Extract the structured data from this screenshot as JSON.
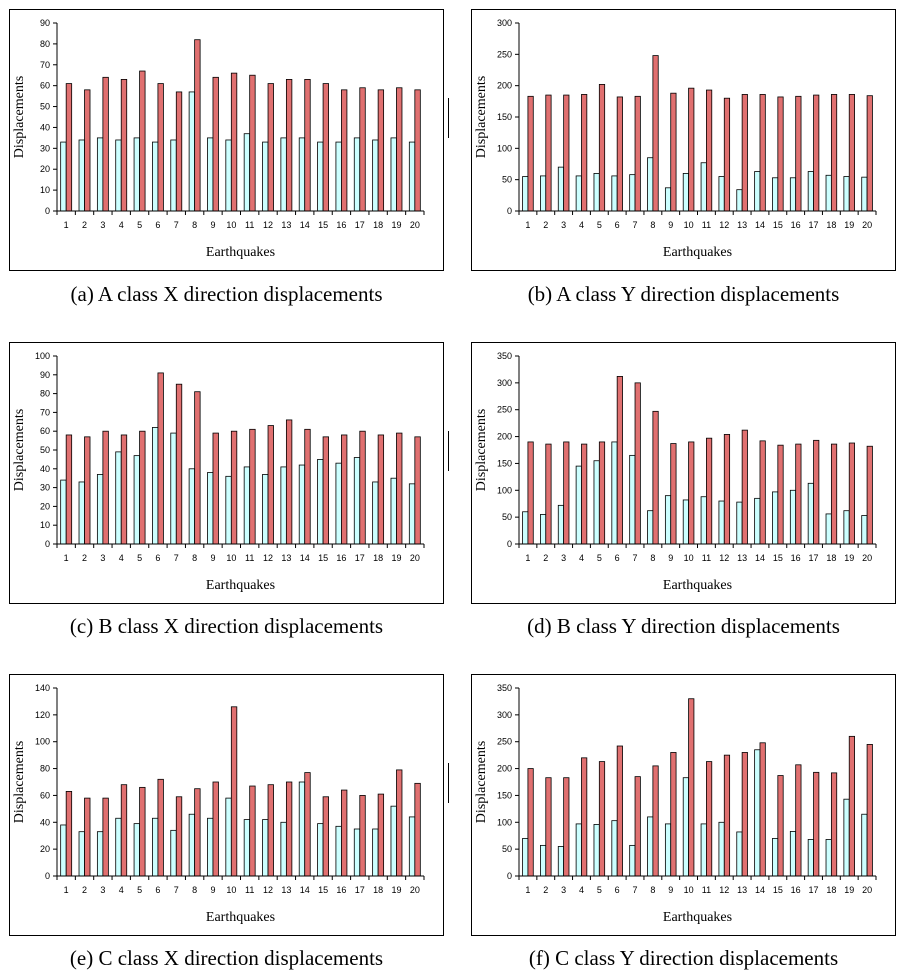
{
  "figure": {
    "captions": [
      "(a) A class X direction displacements",
      "(b) A class Y direction displacements",
      "(c) B class X direction displacements",
      "(d) B class Y direction displacements",
      "(e) C class X direction displacements",
      "(f) C class Y direction displacements"
    ]
  },
  "colors": {
    "series1_fill": "#CCFFFF",
    "series2_fill": "#E07070",
    "stroke": "#000000"
  },
  "chart_data": [
    {
      "type": "bar",
      "caption": "(a) A class X direction displacements",
      "xlabel": "Earthquakes",
      "ylabel": "Displacements",
      "categories": [
        "1",
        "2",
        "3",
        "4",
        "5",
        "6",
        "7",
        "8",
        "9",
        "10",
        "11",
        "12",
        "13",
        "14",
        "15",
        "16",
        "17",
        "18",
        "19",
        "20"
      ],
      "ylim": [
        0,
        90
      ],
      "yticks": [
        0,
        10,
        20,
        30,
        40,
        50,
        60,
        70,
        80,
        90
      ],
      "series": [
        {
          "values": [
            33,
            34,
            35,
            34,
            35,
            33,
            34,
            57,
            35,
            34,
            37,
            33,
            35,
            35,
            33,
            33,
            35,
            34,
            35,
            33
          ]
        },
        {
          "values": [
            61,
            58,
            64,
            63,
            67,
            61,
            57,
            82,
            64,
            66,
            65,
            61,
            63,
            63,
            61,
            58,
            59,
            58,
            59,
            58
          ]
        }
      ]
    },
    {
      "type": "bar",
      "caption": "(b) A class Y direction displacements",
      "xlabel": "Earthquakes",
      "ylabel": "Displacements",
      "categories": [
        "1",
        "2",
        "3",
        "4",
        "5",
        "6",
        "7",
        "8",
        "9",
        "10",
        "11",
        "12",
        "13",
        "14",
        "15",
        "16",
        "17",
        "18",
        "19",
        "20"
      ],
      "ylim": [
        0,
        300
      ],
      "yticks": [
        0,
        50,
        100,
        150,
        200,
        250,
        300
      ],
      "series": [
        {
          "values": [
            55,
            56,
            70,
            56,
            60,
            56,
            58,
            85,
            37,
            60,
            77,
            55,
            34,
            63,
            53,
            53,
            63,
            57,
            55,
            54
          ]
        },
        {
          "values": [
            183,
            185,
            185,
            186,
            202,
            182,
            183,
            248,
            188,
            196,
            193,
            180,
            186,
            186,
            182,
            183,
            185,
            186,
            186,
            184
          ]
        }
      ]
    },
    {
      "type": "bar",
      "caption": "(c) B class X direction displacements",
      "xlabel": "Earthquakes",
      "ylabel": "Displacements",
      "categories": [
        "1",
        "2",
        "3",
        "4",
        "5",
        "6",
        "7",
        "8",
        "9",
        "10",
        "11",
        "12",
        "13",
        "14",
        "15",
        "16",
        "17",
        "18",
        "19",
        "20"
      ],
      "ylim": [
        0,
        100
      ],
      "yticks": [
        0,
        10,
        20,
        30,
        40,
        50,
        60,
        70,
        80,
        90,
        100
      ],
      "series": [
        {
          "values": [
            34,
            33,
            37,
            49,
            47,
            62,
            59,
            40,
            38,
            36,
            41,
            37,
            41,
            42,
            45,
            43,
            46,
            33,
            35,
            32
          ]
        },
        {
          "values": [
            58,
            57,
            60,
            58,
            60,
            91,
            85,
            81,
            59,
            60,
            61,
            63,
            66,
            61,
            57,
            58,
            60,
            58,
            59,
            57
          ]
        }
      ]
    },
    {
      "type": "bar",
      "caption": "(d) B class Y direction displacements",
      "xlabel": "Earthquakes",
      "ylabel": "Displacements",
      "categories": [
        "1",
        "2",
        "3",
        "4",
        "5",
        "6",
        "7",
        "8",
        "9",
        "10",
        "11",
        "12",
        "13",
        "14",
        "15",
        "16",
        "17",
        "18",
        "19",
        "20"
      ],
      "ylim": [
        0,
        350
      ],
      "yticks": [
        0,
        50,
        100,
        150,
        200,
        250,
        300,
        350
      ],
      "series": [
        {
          "values": [
            60,
            55,
            72,
            145,
            155,
            190,
            165,
            62,
            90,
            82,
            88,
            80,
            78,
            85,
            97,
            100,
            113,
            56,
            62,
            53
          ]
        },
        {
          "values": [
            190,
            186,
            190,
            186,
            190,
            312,
            300,
            247,
            187,
            190,
            197,
            204,
            212,
            192,
            184,
            186,
            193,
            186,
            188,
            182
          ]
        }
      ]
    },
    {
      "type": "bar",
      "caption": "(e) C class X direction displacements",
      "xlabel": "Earthquakes",
      "ylabel": "Displacements",
      "categories": [
        "1",
        "2",
        "3",
        "4",
        "5",
        "6",
        "7",
        "8",
        "9",
        "10",
        "11",
        "12",
        "13",
        "14",
        "15",
        "16",
        "17",
        "18",
        "19",
        "20"
      ],
      "ylim": [
        0,
        140
      ],
      "yticks": [
        0,
        20,
        40,
        60,
        80,
        100,
        120,
        140
      ],
      "series": [
        {
          "values": [
            38,
            33,
            33,
            43,
            39,
            43,
            34,
            46,
            43,
            58,
            42,
            42,
            40,
            70,
            39,
            37,
            35,
            35,
            52,
            44
          ]
        },
        {
          "values": [
            63,
            58,
            58,
            68,
            66,
            72,
            59,
            65,
            70,
            126,
            67,
            68,
            70,
            77,
            59,
            64,
            60,
            61,
            79,
            69
          ]
        }
      ]
    },
    {
      "type": "bar",
      "caption": "(f) C class Y direction displacements",
      "xlabel": "Earthquakes",
      "ylabel": "Displacements",
      "categories": [
        "1",
        "2",
        "3",
        "4",
        "5",
        "6",
        "7",
        "8",
        "9",
        "10",
        "11",
        "12",
        "13",
        "14",
        "15",
        "16",
        "17",
        "18",
        "19",
        "20"
      ],
      "ylim": [
        0,
        350
      ],
      "yticks": [
        0,
        50,
        100,
        150,
        200,
        250,
        300,
        350
      ],
      "series": [
        {
          "values": [
            70,
            57,
            55,
            97,
            96,
            103,
            57,
            110,
            97,
            183,
            97,
            100,
            82,
            235,
            70,
            83,
            68,
            68,
            143,
            115
          ]
        },
        {
          "values": [
            200,
            183,
            183,
            220,
            213,
            242,
            185,
            205,
            230,
            330,
            213,
            225,
            230,
            248,
            187,
            207,
            193,
            192,
            260,
            245
          ]
        }
      ]
    }
  ]
}
